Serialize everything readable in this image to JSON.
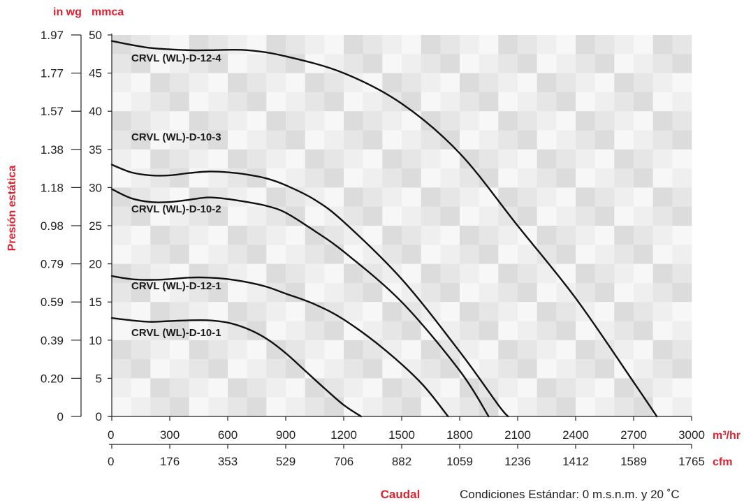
{
  "chart_data": {
    "type": "line",
    "title": "",
    "ylabel": "Presión estática",
    "y_units": [
      "in wg",
      "mmca"
    ],
    "xlabel": "Caudal",
    "x_units": [
      "m³/hr",
      "cfm"
    ],
    "note": "Condiciones Estándar: 0 m.s.n.m. y 20 ˚C",
    "xlim": [
      0,
      3000
    ],
    "ylim": [
      0,
      50
    ],
    "grid": true,
    "x_ticks_m3hr": [
      "0",
      "300",
      "600",
      "900",
      "1200",
      "1500",
      "1800",
      "2100",
      "2400",
      "2700",
      "3000"
    ],
    "x_ticks_cfm": [
      "0",
      "176",
      "353",
      "529",
      "706",
      "882",
      "1059",
      "1236",
      "1412",
      "1589",
      "1765"
    ],
    "y_ticks_mmca": [
      "0",
      "5",
      "10",
      "15",
      "20",
      "25",
      "30",
      "35",
      "40",
      "45",
      "50"
    ],
    "y_ticks_inwg": [
      "0",
      "0.20",
      "0.39",
      "0.59",
      "0.79",
      "0.98",
      "1.18",
      "1.38",
      "1.57",
      "1.77",
      "1.97"
    ],
    "series": [
      {
        "name": "CRVL (WL)-D-12-4",
        "x": [
          0,
          200,
          400,
          500,
          700,
          900,
          1200,
          1500,
          1800,
          2100,
          2400,
          2700,
          2820
        ],
        "y": [
          49.2,
          48.3,
          48.0,
          48.0,
          48.0,
          47.2,
          45.0,
          41.0,
          34.5,
          25.0,
          15.5,
          4.5,
          0
        ]
      },
      {
        "name": "CRVL (WL)-D-10-3",
        "x": [
          0,
          100,
          200,
          300,
          400,
          500,
          600,
          700,
          800,
          900,
          1050,
          1200,
          1500,
          1800,
          2000,
          2050
        ],
        "y": [
          33.0,
          32.0,
          31.6,
          31.6,
          31.9,
          32.1,
          32.0,
          31.7,
          31.2,
          30.3,
          28.4,
          25.5,
          18.0,
          8.5,
          1.5,
          0
        ]
      },
      {
        "name": "CRVL (WL)-D-10-2",
        "x": [
          0,
          100,
          200,
          300,
          400,
          500,
          600,
          700,
          800,
          900,
          1050,
          1200,
          1500,
          1800,
          1950
        ],
        "y": [
          29.8,
          28.6,
          28.1,
          28.1,
          28.4,
          28.7,
          28.5,
          28.1,
          27.6,
          26.7,
          24.3,
          21.6,
          15.0,
          6.0,
          0
        ]
      },
      {
        "name": "CRVL (WL)-D-12-1",
        "x": [
          0,
          100,
          200,
          300,
          400,
          500,
          600,
          700,
          800,
          900,
          1050,
          1200,
          1400,
          1600,
          1740
        ],
        "y": [
          18.4,
          18.0,
          17.9,
          18.0,
          18.2,
          18.2,
          18.0,
          17.6,
          17.0,
          16.1,
          14.7,
          12.7,
          9.0,
          4.4,
          0
        ]
      },
      {
        "name": "CRVL (WL)-D-10-1",
        "x": [
          0,
          100,
          200,
          300,
          400,
          500,
          600,
          700,
          800,
          900,
          1000,
          1100,
          1200,
          1290
        ],
        "y": [
          12.9,
          12.6,
          12.4,
          12.5,
          12.6,
          12.6,
          12.3,
          11.5,
          10.2,
          8.3,
          6.0,
          3.7,
          1.5,
          0
        ]
      }
    ]
  }
}
